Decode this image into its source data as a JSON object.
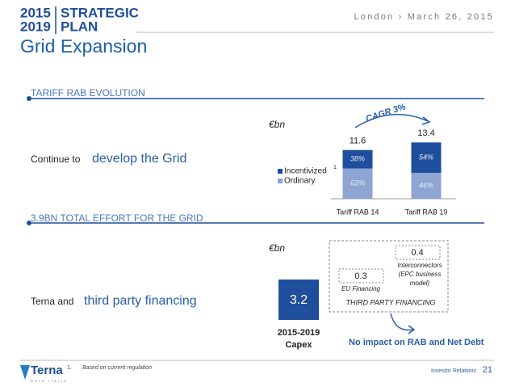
{
  "header": {
    "logo_years": [
      "2015",
      "2019"
    ],
    "logo_words": [
      "STRATEGIC",
      "PLAN"
    ],
    "location_date": "London › March 26, 2015",
    "title": "Grid Expansion"
  },
  "section1": {
    "heading": "TARIFF RAB EVOLUTION",
    "text_plain": "Continue to",
    "text_emph": "develop the Grid",
    "unit": "€bn",
    "cagr": "CAGR 3%",
    "chart": {
      "categories": [
        "Tariff RAB 14",
        "Tariff RAB 19"
      ],
      "totals": [
        11.6,
        13.4
      ],
      "series": [
        {
          "name": "Ordinary",
          "color": "#8ea4d2",
          "values": [
            {
              "value": 62,
              "label": "62%"
            },
            {
              "value": 46,
              "label": "46%"
            }
          ]
        },
        {
          "name": "Incentivized",
          "color": "#1f4e9c",
          "values": [
            {
              "value": 38,
              "label": "38%"
            },
            {
              "value": 54,
              "label": "54%"
            }
          ]
        }
      ],
      "footnote_mark": "1"
    }
  },
  "section2": {
    "heading": "3.9BN TOTAL EFFORT FOR THE GRID",
    "text_plain": "Terna and",
    "text_emph": "third party financing",
    "unit": "€bn",
    "capex": {
      "value": "3.2",
      "label_line1": "2015-2019",
      "label_line2": "Capex"
    },
    "eu": {
      "value": "0.3",
      "label": "EU Financing"
    },
    "interconnectors": {
      "value": "0.4",
      "label_lines": [
        "Interconnectors",
        "(EPC business",
        "model)"
      ]
    },
    "third_party": "THIRD PARTY FINANCING",
    "note": "No impact on RAB and Net Debt"
  },
  "footer": {
    "footnote_number": "1.",
    "footnote": "Based on current regulation",
    "brand": "Terna",
    "brand_sub": "RETE ITALIA",
    "section": "Investor Relations",
    "page": "21"
  }
}
